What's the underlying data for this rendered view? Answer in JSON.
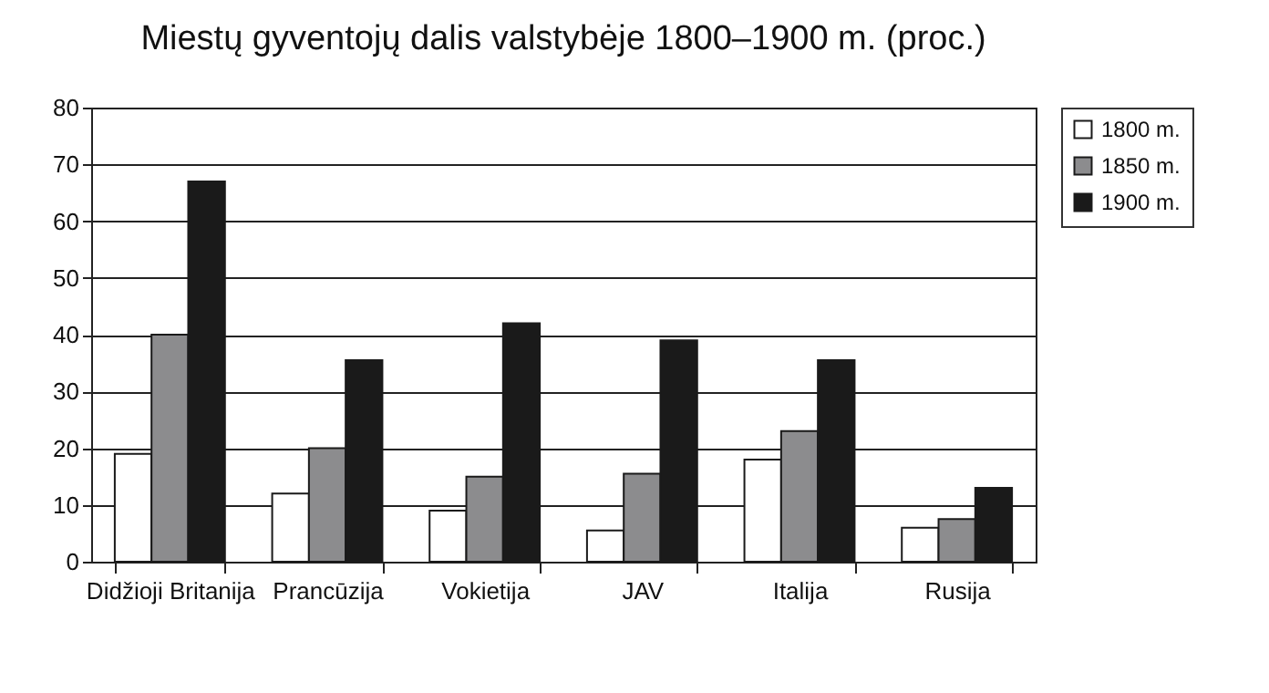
{
  "chart_data": {
    "type": "bar",
    "title": "Miestų gyventojų dalis valstybėje 1800–1900 m. (proc.)",
    "categories": [
      "Didžioji Britanija",
      "Prancūzija",
      "Vokietija",
      "JAV",
      "Italija",
      "Rusija"
    ],
    "series": [
      {
        "name": "1800 m.",
        "color": "#ffffff",
        "values": [
          19,
          12,
          9,
          5.5,
          18,
          6
        ]
      },
      {
        "name": "1850 m.",
        "color": "#8c8c8e",
        "values": [
          40,
          20,
          15,
          15.5,
          23,
          7.5
        ]
      },
      {
        "name": "1900 m.",
        "color": "#1a1a1a",
        "values": [
          67,
          35.5,
          42,
          39,
          35.5,
          13
        ]
      }
    ],
    "ylim": [
      0,
      80
    ],
    "yticks": [
      0,
      10,
      20,
      30,
      40,
      50,
      60,
      70,
      80
    ],
    "grid": "y",
    "legend": "right"
  }
}
